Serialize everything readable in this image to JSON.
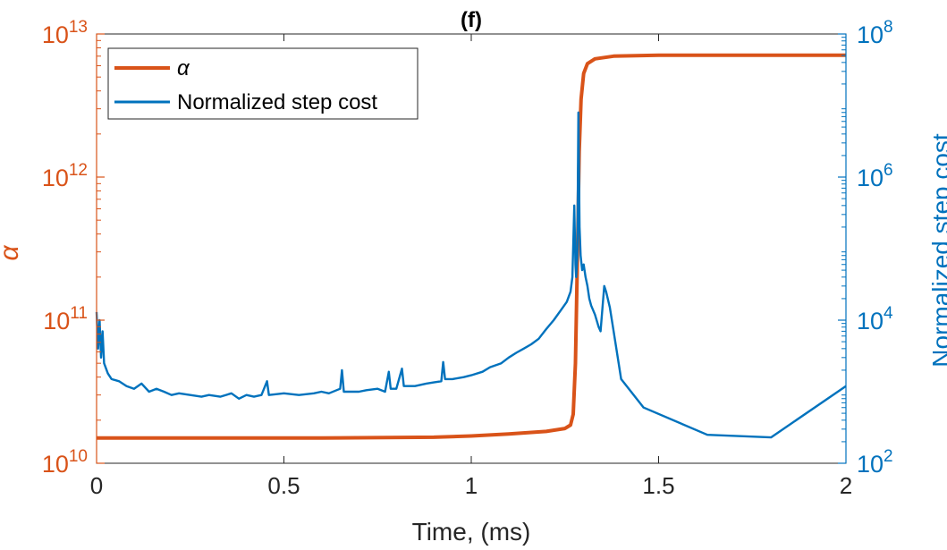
{
  "chart_data": {
    "type": "line",
    "title": "(f)",
    "xlabel": "Time, (ms)",
    "ylabel_left": "α",
    "ylabel_right": "Normalized step cost",
    "xlim": [
      0,
      2
    ],
    "ylim_left": [
      10000000000,
      10000000000000
    ],
    "ylim_right": [
      100,
      100000000
    ],
    "x_ticks": [
      {
        "value": 0,
        "label": "0"
      },
      {
        "value": 0.5,
        "label": "0.5"
      },
      {
        "value": 1,
        "label": "1"
      },
      {
        "value": 1.5,
        "label": "1.5"
      },
      {
        "value": 2,
        "label": "2"
      }
    ],
    "y_left_ticks": [
      {
        "exp": 10,
        "base": "10",
        "sup": "10"
      },
      {
        "exp": 11,
        "base": "10",
        "sup": "11"
      },
      {
        "exp": 12,
        "base": "10",
        "sup": "12"
      },
      {
        "exp": 13,
        "base": "10",
        "sup": "13"
      }
    ],
    "y_right_ticks": [
      {
        "exp": 2,
        "base": "10",
        "sup": "2"
      },
      {
        "exp": 4,
        "base": "10",
        "sup": "4"
      },
      {
        "exp": 6,
        "base": "10",
        "sup": "6"
      },
      {
        "exp": 8,
        "base": "10",
        "sup": "8"
      }
    ],
    "legend": {
      "placement": "top-left",
      "entries": [
        {
          "label": "α",
          "series": "alpha"
        },
        {
          "label": "Normalized step cost",
          "series": "step_cost"
        }
      ]
    },
    "series": [
      {
        "name": "α",
        "key": "alpha",
        "axis": "left",
        "color": "#D95319",
        "points": [
          [
            0,
            15000000000.0
          ],
          [
            0.3,
            15000000000.0
          ],
          [
            0.6,
            15000000000.0
          ],
          [
            0.9,
            15200000000.0
          ],
          [
            1.0,
            15500000000.0
          ],
          [
            1.1,
            16000000000.0
          ],
          [
            1.2,
            16700000000.0
          ],
          [
            1.25,
            17500000000.0
          ],
          [
            1.265,
            18500000000.0
          ],
          [
            1.272,
            22000000000.0
          ],
          [
            1.278,
            50000000000.0
          ],
          [
            1.283,
            250000000000.0
          ],
          [
            1.288,
            1500000000000.0
          ],
          [
            1.293,
            3500000000000.0
          ],
          [
            1.3,
            5300000000000.0
          ],
          [
            1.31,
            6200000000000.0
          ],
          [
            1.33,
            6700000000000.0
          ],
          [
            1.38,
            7000000000000.0
          ],
          [
            1.5,
            7100000000000.0
          ],
          [
            2.0,
            7100000000000.0
          ]
        ]
      },
      {
        "name": "Normalized step cost",
        "key": "step_cost",
        "axis": "right",
        "color": "#0072BD",
        "points": [
          [
            0,
            13000
          ],
          [
            0.004,
            4000
          ],
          [
            0.008,
            10000
          ],
          [
            0.012,
            3000
          ],
          [
            0.016,
            7000
          ],
          [
            0.02,
            2500
          ],
          [
            0.03,
            1800
          ],
          [
            0.04,
            1500
          ],
          [
            0.06,
            1400
          ],
          [
            0.08,
            1200
          ],
          [
            0.1,
            1100
          ],
          [
            0.12,
            1300
          ],
          [
            0.14,
            1000
          ],
          [
            0.16,
            1100
          ],
          [
            0.18,
            1000
          ],
          [
            0.2,
            900
          ],
          [
            0.22,
            950
          ],
          [
            0.25,
            900
          ],
          [
            0.28,
            850
          ],
          [
            0.3,
            900
          ],
          [
            0.33,
            850
          ],
          [
            0.36,
            950
          ],
          [
            0.38,
            800
          ],
          [
            0.4,
            900
          ],
          [
            0.42,
            850
          ],
          [
            0.44,
            900
          ],
          [
            0.455,
            1400
          ],
          [
            0.46,
            900
          ],
          [
            0.5,
            950
          ],
          [
            0.54,
            900
          ],
          [
            0.58,
            950
          ],
          [
            0.6,
            1000
          ],
          [
            0.62,
            950
          ],
          [
            0.65,
            1100
          ],
          [
            0.655,
            2000
          ],
          [
            0.66,
            1000
          ],
          [
            0.7,
            1000
          ],
          [
            0.72,
            1050
          ],
          [
            0.75,
            1100
          ],
          [
            0.77,
            1000
          ],
          [
            0.78,
            1900
          ],
          [
            0.785,
            1100
          ],
          [
            0.8,
            1100
          ],
          [
            0.815,
            2100
          ],
          [
            0.82,
            1200
          ],
          [
            0.85,
            1200
          ],
          [
            0.88,
            1300
          ],
          [
            0.9,
            1350
          ],
          [
            0.92,
            1400
          ],
          [
            0.925,
            2600
          ],
          [
            0.93,
            1500
          ],
          [
            0.95,
            1500
          ],
          [
            0.98,
            1600
          ],
          [
            1.0,
            1700
          ],
          [
            1.03,
            1900
          ],
          [
            1.05,
            2200
          ],
          [
            1.08,
            2500
          ],
          [
            1.1,
            3000
          ],
          [
            1.12,
            3500
          ],
          [
            1.14,
            4000
          ],
          [
            1.16,
            4600
          ],
          [
            1.18,
            5500
          ],
          [
            1.2,
            7500
          ],
          [
            1.22,
            10000
          ],
          [
            1.24,
            14000
          ],
          [
            1.255,
            18000
          ],
          [
            1.265,
            25000
          ],
          [
            1.27,
            40000
          ],
          [
            1.275,
            400000
          ],
          [
            1.278,
            60000
          ],
          [
            1.28,
            40000
          ],
          [
            1.283,
            80000
          ],
          [
            1.286,
            8000000
          ],
          [
            1.289,
            200000
          ],
          [
            1.292,
            80000
          ],
          [
            1.296,
            50000
          ],
          [
            1.3,
            60000
          ],
          [
            1.305,
            40000
          ],
          [
            1.31,
            30000
          ],
          [
            1.315,
            20000
          ],
          [
            1.32,
            16000
          ],
          [
            1.33,
            12000
          ],
          [
            1.34,
            8000
          ],
          [
            1.345,
            7000
          ],
          [
            1.355,
            30000
          ],
          [
            1.36,
            25000
          ],
          [
            1.37,
            15000
          ],
          [
            1.38,
            7000
          ],
          [
            1.4,
            1500
          ],
          [
            1.46,
            600
          ],
          [
            1.63,
            250
          ],
          [
            1.8,
            230
          ],
          [
            2.0,
            1200
          ]
        ]
      }
    ]
  }
}
